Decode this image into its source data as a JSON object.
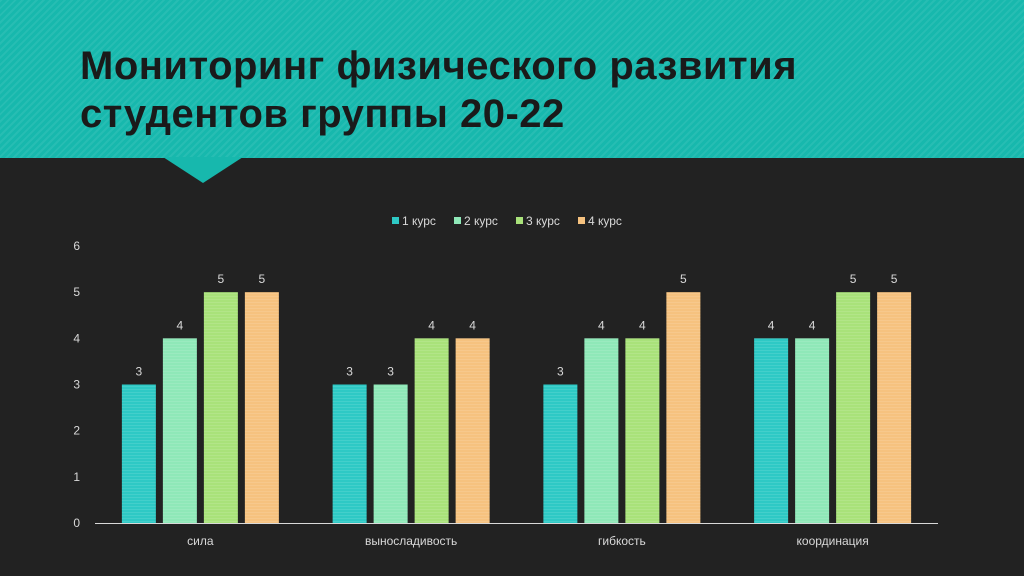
{
  "slide": {
    "title_line1": "Мониторинг физического развития",
    "title_line2": "студентов группы 20-22"
  },
  "chart_data": {
    "type": "bar",
    "categories": [
      "сила",
      "выносладивость",
      "гибкость",
      "координация"
    ],
    "series": [
      {
        "name": "1 курс",
        "values": [
          3,
          3,
          3,
          4
        ],
        "color": "#2ec9c5"
      },
      {
        "name": "2 курс",
        "values": [
          4,
          3,
          4,
          4
        ],
        "color": "#8fe8b8"
      },
      {
        "name": "3 курс",
        "values": [
          5,
          4,
          4,
          5
        ],
        "color": "#a9e27a"
      },
      {
        "name": "4 курс",
        "values": [
          5,
          4,
          5,
          5
        ],
        "color": "#f6c27f"
      }
    ],
    "yticks": [
      0,
      1,
      2,
      3,
      4,
      5,
      6
    ],
    "ylim": [
      0,
      6
    ],
    "grid": false,
    "legend_position": "top",
    "data_labels": true
  }
}
